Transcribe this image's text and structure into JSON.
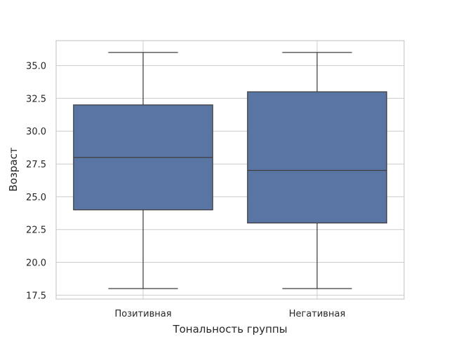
{
  "chart_data": {
    "type": "box",
    "title": "",
    "xlabel": "Тональность группы",
    "ylabel": "Возраст",
    "ylim": [
      17.2,
      36.9
    ],
    "yticks": [
      17.5,
      20.0,
      22.5,
      25.0,
      27.5,
      30.0,
      32.5,
      35.0
    ],
    "ytick_labels": [
      "17.5",
      "20.0",
      "22.5",
      "25.0",
      "27.5",
      "30.0",
      "32.5",
      "35.0"
    ],
    "grid": true,
    "categories": [
      "Позитивная",
      "Негативная"
    ],
    "boxes": [
      {
        "category": "Позитивная",
        "whisker_low": 18,
        "q1": 24,
        "median": 28,
        "q3": 32,
        "whisker_high": 36
      },
      {
        "category": "Негативная",
        "whisker_low": 18,
        "q1": 23,
        "median": 27,
        "q3": 33,
        "whisker_high": 36
      }
    ],
    "colors": {
      "box_fill": "#5875a4",
      "line": "#3f3f3f",
      "grid": "#cccccc",
      "frame": "#cccccc"
    }
  }
}
